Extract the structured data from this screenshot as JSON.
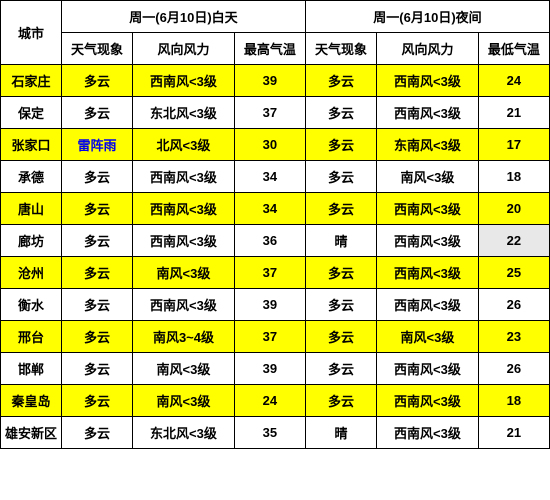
{
  "header": {
    "city": "城市",
    "day_group": "周一(6月10日)白天",
    "night_group": "周一(6月10日)夜间",
    "cols": {
      "weather": "天气现象",
      "wind": "风向风力",
      "high": "最高气温",
      "low": "最低气温"
    }
  },
  "colors": {
    "highlight": "#ffff00",
    "link": "#0000ee",
    "grey_cell": "#e8e8e8",
    "border": "#000000",
    "bg": "#ffffff"
  },
  "rows": [
    {
      "city": "石家庄",
      "day_wx": "多云",
      "day_wind": "西南风<3级",
      "high": "39",
      "night_wx": "多云",
      "night_wind": "西南风<3级",
      "low": "24",
      "hl": true
    },
    {
      "city": "保定",
      "day_wx": "多云",
      "day_wind": "东北风<3级",
      "high": "37",
      "night_wx": "多云",
      "night_wind": "西南风<3级",
      "low": "21",
      "hl": false
    },
    {
      "city": "张家口",
      "day_wx": "雷阵雨",
      "day_wind": "北风<3级",
      "high": "30",
      "night_wx": "多云",
      "night_wind": "东南风<3级",
      "low": "17",
      "hl": true,
      "day_wx_link": true
    },
    {
      "city": "承德",
      "day_wx": "多云",
      "day_wind": "西南风<3级",
      "high": "34",
      "night_wx": "多云",
      "night_wind": "南风<3级",
      "low": "18",
      "hl": false
    },
    {
      "city": "唐山",
      "day_wx": "多云",
      "day_wind": "西南风<3级",
      "high": "34",
      "night_wx": "多云",
      "night_wind": "西南风<3级",
      "low": "20",
      "hl": true
    },
    {
      "city": "廊坊",
      "day_wx": "多云",
      "day_wind": "西南风<3级",
      "high": "36",
      "night_wx": "晴",
      "night_wind": "西南风<3级",
      "low": "22",
      "hl": false,
      "low_grey": true
    },
    {
      "city": "沧州",
      "day_wx": "多云",
      "day_wind": "南风<3级",
      "high": "37",
      "night_wx": "多云",
      "night_wind": "西南风<3级",
      "low": "25",
      "hl": true
    },
    {
      "city": "衡水",
      "day_wx": "多云",
      "day_wind": "西南风<3级",
      "high": "39",
      "night_wx": "多云",
      "night_wind": "西南风<3级",
      "low": "26",
      "hl": false
    },
    {
      "city": "邢台",
      "day_wx": "多云",
      "day_wind": "南风3~4级",
      "high": "37",
      "night_wx": "多云",
      "night_wind": "南风<3级",
      "low": "23",
      "hl": true
    },
    {
      "city": "邯郸",
      "day_wx": "多云",
      "day_wind": "南风<3级",
      "high": "39",
      "night_wx": "多云",
      "night_wind": "西南风<3级",
      "low": "26",
      "hl": false
    },
    {
      "city": "秦皇岛",
      "day_wx": "多云",
      "day_wind": "南风<3级",
      "high": "24",
      "night_wx": "多云",
      "night_wind": "西南风<3级",
      "low": "18",
      "hl": true
    },
    {
      "city": "雄安新区",
      "day_wx": "多云",
      "day_wind": "东北风<3级",
      "high": "35",
      "night_wx": "晴",
      "night_wind": "西南风<3级",
      "low": "21",
      "hl": false
    }
  ]
}
